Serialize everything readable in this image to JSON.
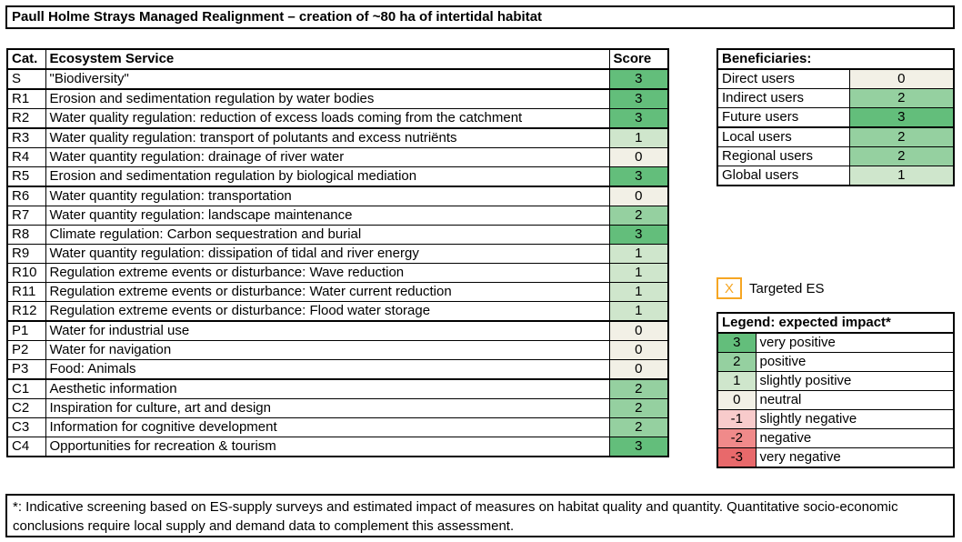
{
  "title": "Paull Holme Strays Managed Realignment – creation of ~80 ha of intertidal habitat",
  "colors": {
    "3": "#63be7b",
    "2": "#95d0a0",
    "1": "#cfe6cc",
    "0": "#f2f0e6",
    "-1": "#f8cbcb",
    "-2": "#f08a8a",
    "-3": "#e8696b",
    "targeted": "#f6a623"
  },
  "es_table": {
    "headers": {
      "cat": "Cat.",
      "service": "Ecosystem Service",
      "score": "Score"
    },
    "rows": [
      {
        "cat": "S",
        "service": "\"Biodiversity\"",
        "score": "3"
      },
      {
        "cat": "R1",
        "service": "Erosion and sedimentation regulation by water bodies",
        "score": "3"
      },
      {
        "cat": "R2",
        "service": "Water quality regulation: reduction of excess loads coming from the catchment",
        "score": "3"
      },
      {
        "cat": "R3",
        "service": "Water quality regulation: transport of polutants and excess nutriënts",
        "score": "1"
      },
      {
        "cat": "R4",
        "service": "Water quantity regulation: drainage of river water",
        "score": "0"
      },
      {
        "cat": "R5",
        "service": "Erosion and sedimentation regulation by biological mediation",
        "score": "3"
      },
      {
        "cat": "R6",
        "service": "Water quantity regulation: transportation",
        "score": "0"
      },
      {
        "cat": "R7",
        "service": "Water quantity regulation: landscape maintenance",
        "score": "2"
      },
      {
        "cat": "R8",
        "service": "Climate regulation: Carbon sequestration and burial",
        "score": "3"
      },
      {
        "cat": "R9",
        "service": "Water quantity regulation: dissipation of tidal and river energy",
        "score": "1"
      },
      {
        "cat": "R10",
        "service": "Regulation extreme events or disturbance: Wave reduction",
        "score": "1"
      },
      {
        "cat": "R11",
        "service": "Regulation extreme events or disturbance: Water current reduction",
        "score": "1"
      },
      {
        "cat": "R12",
        "service": "Regulation extreme events or disturbance: Flood water storage",
        "score": "1"
      },
      {
        "cat": "P1",
        "service": "Water for industrial use",
        "score": "0"
      },
      {
        "cat": "P2",
        "service": "Water for navigation",
        "score": "0"
      },
      {
        "cat": "P3",
        "service": "Food: Animals",
        "score": "0"
      },
      {
        "cat": "C1",
        "service": "Aesthetic information",
        "score": "2"
      },
      {
        "cat": "C2",
        "service": "Inspiration for culture, art and design",
        "score": "2"
      },
      {
        "cat": "C3",
        "service": "Information for cognitive development",
        "score": "2"
      },
      {
        "cat": "C4",
        "service": "Opportunities for recreation & tourism",
        "score": "3"
      }
    ]
  },
  "beneficiaries": {
    "header": "Beneficiaries:",
    "rows": [
      {
        "label": "Direct users",
        "score": "0"
      },
      {
        "label": "Indirect users",
        "score": "2"
      },
      {
        "label": "Future users",
        "score": "3"
      },
      {
        "label": "Local users",
        "score": "2"
      },
      {
        "label": "Regional users",
        "score": "2"
      },
      {
        "label": "Global users",
        "score": "1"
      }
    ]
  },
  "targeted": {
    "marker": "X",
    "label": "Targeted ES"
  },
  "legend": {
    "header": "Legend: expected  impact*",
    "rows": [
      {
        "score": "3",
        "label": "very positive"
      },
      {
        "score": "2",
        "label": "positive"
      },
      {
        "score": "1",
        "label": "slightly positive"
      },
      {
        "score": "0",
        "label": "neutral"
      },
      {
        "score": "-1",
        "label": "slightly negative"
      },
      {
        "score": "-2",
        "label": "negative"
      },
      {
        "score": "-3",
        "label": "very negative"
      }
    ]
  },
  "footnote": "*: Indicative screening based on ES-supply surveys and estimated impact of measures on habitat quality and quantity. Quantitative socio-economic conclusions require local supply and demand data to complement this assessment."
}
